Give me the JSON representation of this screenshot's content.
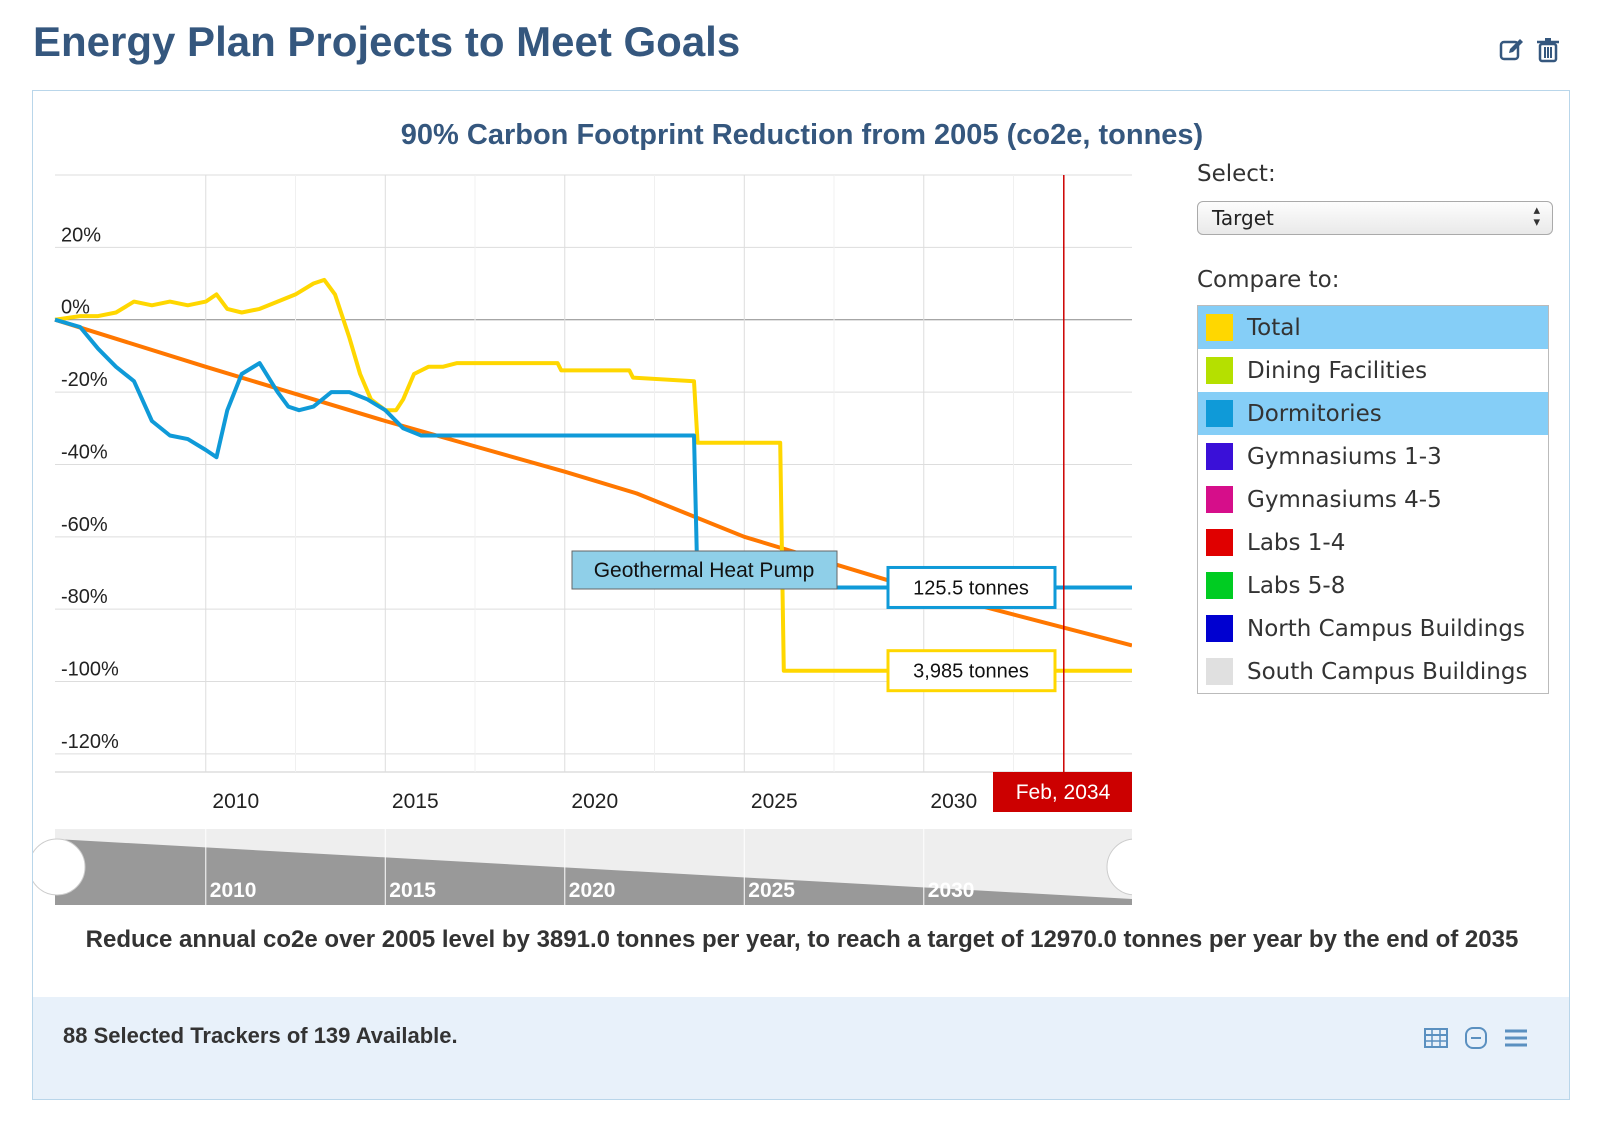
{
  "page": {
    "title": "Energy Plan Projects to Meet Goals"
  },
  "icons": {
    "edit": "edit-icon",
    "delete": "trash-icon",
    "table": "table-icon",
    "collapse": "minus-circle-icon",
    "menu": "menu-icon"
  },
  "panel": {
    "select_label": "Select:",
    "select_value": "Target",
    "compare_label": "Compare to:",
    "compare_items": [
      {
        "label": "Total",
        "color": "#ffd700",
        "selected": true
      },
      {
        "label": "Dining Facilities",
        "color": "#b5e000",
        "selected": false
      },
      {
        "label": "Dormitories",
        "color": "#0f9ad8",
        "selected": true
      },
      {
        "label": "Gymnasiums 1-3",
        "color": "#3a10d8",
        "selected": false
      },
      {
        "label": "Gymnasiums 4-5",
        "color": "#d60e8a",
        "selected": false
      },
      {
        "label": "Labs 1-4",
        "color": "#e00000",
        "selected": false
      },
      {
        "label": "Labs 5-8",
        "color": "#00cc22",
        "selected": false
      },
      {
        "label": "North Campus Buildings",
        "color": "#0000d0",
        "selected": false
      },
      {
        "label": "South Campus Buildings",
        "color": "#e0e0e0",
        "selected": false
      }
    ],
    "caption": "Reduce annual co2e over 2005 level by 3891.0 tonnes per year, to reach a target of 12970.0 tonnes per year by the end of 2035",
    "footer": "88 Selected Trackers of 139 Available."
  },
  "chart_data": {
    "type": "line",
    "title": "90% Carbon Footprint Reduction from 2005 (co2e, tonnes)",
    "xlim": [
      2005.8,
      2035.8
    ],
    "ylim": [
      -125,
      40
    ],
    "y_ticks": [
      20,
      0,
      -20,
      -40,
      -60,
      -80,
      -100,
      -120
    ],
    "y_tick_labels": [
      "20%",
      "0%",
      "-20%",
      "-40%",
      "-60%",
      "-80%",
      "-100%",
      "-120%"
    ],
    "x_ticks": [
      2010,
      2015,
      2020,
      2025,
      2030
    ],
    "x_tick_labels": [
      "2010",
      "2015",
      "2020",
      "2025",
      "2030"
    ],
    "grid": true,
    "series": [
      {
        "color": "#ff7700",
        "x": [
          2005.8,
          2010,
          2015,
          2020,
          2022,
          2025,
          2030,
          2035.8
        ],
        "y": [
          0,
          -13,
          -28,
          -42,
          -48,
          -60,
          -75,
          -90
        ]
      },
      {
        "color": "#ffd700",
        "x": [
          2005.8,
          2006.5,
          2007,
          2007.5,
          2008,
          2008.5,
          2009,
          2009.5,
          2010,
          2010.3,
          2010.6,
          2011,
          2011.5,
          2012,
          2012.5,
          2013,
          2013.3,
          2013.6,
          2014,
          2014.3,
          2014.6,
          2015,
          2015.3,
          2015.5,
          2015.8,
          2016.2,
          2016.6,
          2017,
          2018,
          2019.8,
          2019.9,
          2021.8,
          2021.9,
          2023.6,
          2023.7,
          2026,
          2026.1,
          2035.8
        ],
        "y": [
          0,
          1,
          1,
          2,
          5,
          4,
          5,
          4,
          5,
          7,
          3,
          2,
          3,
          5,
          7,
          10,
          11,
          7,
          -5,
          -15,
          -22,
          -25,
          -25,
          -22,
          -15,
          -13,
          -13,
          -12,
          -12,
          -12,
          -14,
          -14,
          -16,
          -17,
          -34,
          -34,
          -97,
          -97
        ]
      },
      {
        "color": "#0f9ad8",
        "x": [
          2005.8,
          2006.5,
          2007,
          2007.5,
          2008,
          2008.5,
          2009,
          2009.5,
          2010,
          2010.3,
          2010.6,
          2011,
          2011.5,
          2012,
          2012.3,
          2012.6,
          2013,
          2013.5,
          2014,
          2014.5,
          2015,
          2015.5,
          2016,
          2018,
          2020,
          2022,
          2023.6,
          2023.7,
          2035.8
        ],
        "y": [
          0,
          -2,
          -8,
          -13,
          -17,
          -28,
          -32,
          -33,
          -36,
          -38,
          -25,
          -15,
          -12,
          -20,
          -24,
          -25,
          -24,
          -20,
          -20,
          -22,
          -25,
          -30,
          -32,
          -32,
          -32,
          -32,
          -32,
          -74,
          -74
        ]
      }
    ],
    "annotations": [
      "Geothermal Heat Pump",
      "125.5 tonnes",
      "3,985 tonnes"
    ],
    "crosshair": {
      "x": 2033.9,
      "label": "Feb, 2034"
    },
    "navigator_labels": [
      "2010",
      "2015",
      "2020",
      "2025",
      "2030"
    ]
  }
}
